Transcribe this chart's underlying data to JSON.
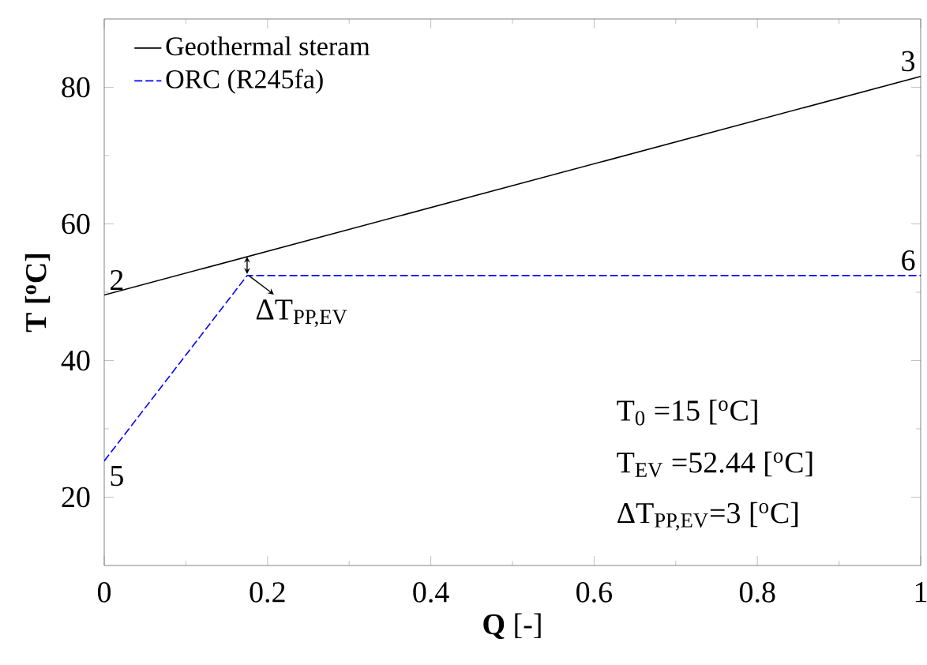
{
  "chart_data": {
    "type": "line",
    "xlabel": "**Q**  [-]",
    "ylabel": "**T [$^{o}$C]**",
    "xlim": [
      0,
      1
    ],
    "ylim": [
      10,
      90
    ],
    "xticks": [
      0,
      0.2,
      0.4,
      0.6,
      0.8,
      1
    ],
    "yticks": [
      20,
      40,
      60,
      80
    ],
    "legend": "top left",
    "grid": false,
    "marker": "none",
    "series": [
      {
        "name": "Geothermal steram",
        "color": "#000000",
        "line_style": "solid",
        "x": [
          0,
          1
        ],
        "values": [
          49.6,
          81.6
        ]
      },
      {
        "name": "ORC (R245fa)",
        "color": "#0000ff",
        "line_style": "dashed",
        "x": [
          0,
          0.175,
          1
        ],
        "values": [
          25.3,
          52.44,
          52.44
        ]
      }
    ],
    "annotations": [
      {
        "text": "2",
        "x": 0,
        "y": 49.6
      },
      {
        "text": "3",
        "x": 1,
        "y": 81.6
      },
      {
        "text": "5",
        "x": 0,
        "y": 25.3
      },
      {
        "text": "6",
        "x": 1,
        "y": 52.44
      },
      {
        "text": "ΔT$_{PP,EV}$",
        "x": 0.175,
        "y": 52.44
      },
      "T$_{0}$ =15 [$^{o}$C]",
      "T$_{EV}$ =52.44 [$^{o}$C]",
      "ΔT$_{PP,EV}$=3 [$^{o}$C]"
    ]
  }
}
